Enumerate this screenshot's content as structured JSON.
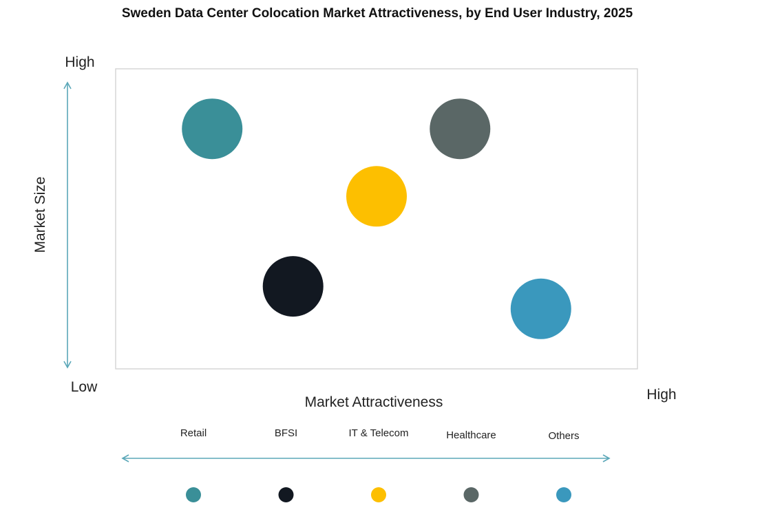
{
  "chart_data": {
    "type": "scatter",
    "title": "Sweden Data Center Colocation Market Attractiveness,  by End User Industry, 2025",
    "xlabel": "Market Attractiveness",
    "ylabel": "Market Size",
    "x_axis_labels": {
      "low": "",
      "high": "High"
    },
    "y_axis_labels": {
      "low": "Low",
      "high": "High"
    },
    "xlim": [
      0,
      1
    ],
    "ylim": [
      0,
      1
    ],
    "grid": false,
    "legend_position": "bottom",
    "series": [
      {
        "name": "Retail",
        "x": 0.185,
        "y": 0.8,
        "color": "#3a8f98"
      },
      {
        "name": "BFSI",
        "x": 0.34,
        "y": 0.275,
        "color": "#121821"
      },
      {
        "name": "IT & Telecom",
        "x": 0.5,
        "y": 0.575,
        "color": "#fdbf00"
      },
      {
        "name": "Healthcare",
        "x": 0.66,
        "y": 0.8,
        "color": "#5a6766"
      },
      {
        "name": "Others",
        "x": 0.815,
        "y": 0.2,
        "color": "#3a98bd"
      }
    ]
  },
  "colors": {
    "axis_arrow": "#5aa7b8",
    "plot_border": "#d6d6d6"
  }
}
